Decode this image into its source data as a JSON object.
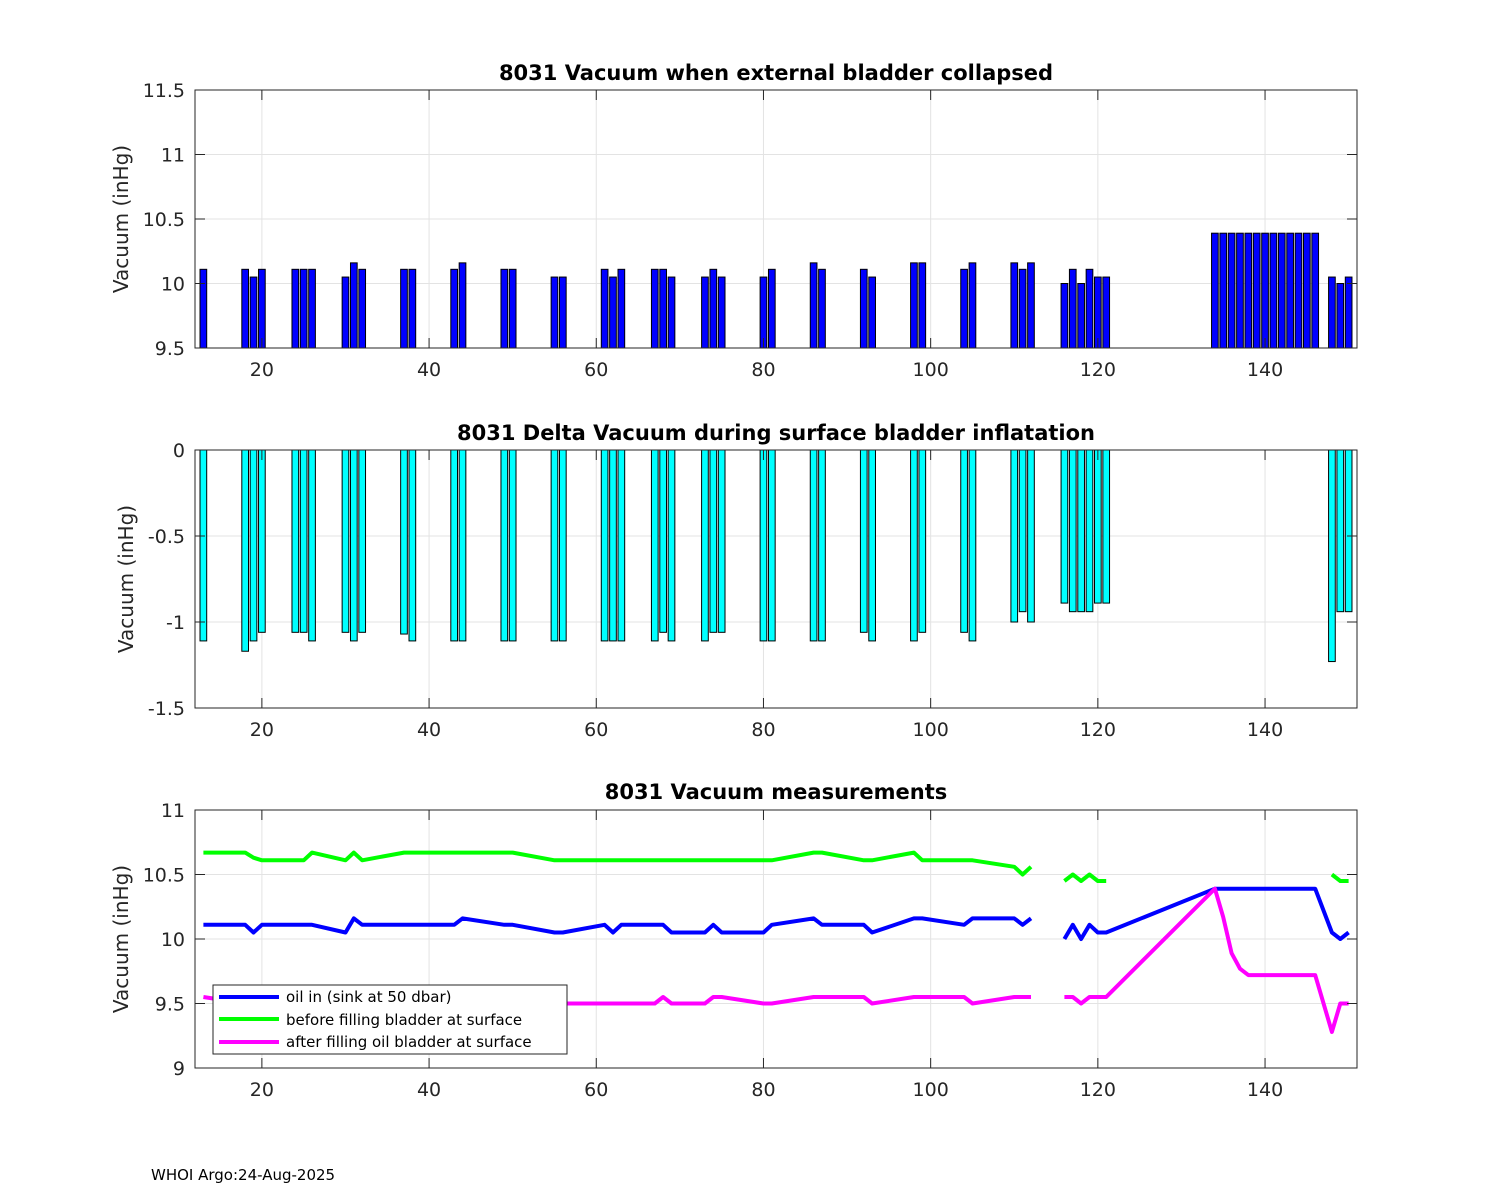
{
  "footer": "WHOI Argo:24-Aug-2025",
  "chart_data": [
    {
      "type": "bar",
      "title": "8031 Vacuum when external bladder collapsed",
      "ylabel": "Vacuum (inHg)",
      "xlim": [
        12,
        151
      ],
      "ylim": [
        9.5,
        11.5
      ],
      "yticks": [
        "9.5",
        "10",
        "10.5",
        "11",
        "11.5"
      ],
      "xticks": [
        "20",
        "40",
        "60",
        "80",
        "100",
        "120",
        "140"
      ],
      "color": "#0000ff",
      "baseline": 9.5,
      "x": [
        13,
        18,
        19,
        20,
        24,
        25,
        26,
        30,
        31,
        32,
        37,
        38,
        43,
        44,
        49,
        50,
        55,
        56,
        61,
        62,
        63,
        67,
        68,
        69,
        73,
        74,
        75,
        80,
        81,
        86,
        87,
        92,
        93,
        98,
        99,
        104,
        105,
        110,
        111,
        112,
        116,
        117,
        118,
        119,
        120,
        121,
        134,
        135,
        136,
        137,
        138,
        139,
        140,
        141,
        142,
        143,
        144,
        145,
        146,
        148,
        149,
        150
      ],
      "values": [
        10.11,
        10.11,
        10.05,
        10.11,
        10.11,
        10.11,
        10.11,
        10.05,
        10.16,
        10.11,
        10.11,
        10.11,
        10.11,
        10.16,
        10.11,
        10.11,
        10.05,
        10.05,
        10.11,
        10.05,
        10.11,
        10.11,
        10.11,
        10.05,
        10.05,
        10.11,
        10.05,
        10.05,
        10.11,
        10.16,
        10.11,
        10.11,
        10.05,
        10.16,
        10.16,
        10.11,
        10.16,
        10.16,
        10.11,
        10.16,
        10.0,
        10.11,
        10.0,
        10.11,
        10.05,
        10.05,
        10.39,
        10.39,
        10.39,
        10.39,
        10.39,
        10.39,
        10.39,
        10.39,
        10.39,
        10.39,
        10.39,
        10.39,
        10.39,
        10.05,
        10.0,
        10.05
      ]
    },
    {
      "type": "bar",
      "title": "8031 Delta Vacuum during surface bladder inflatation",
      "ylabel": "Vacuum (inHg)",
      "xlim": [
        12,
        151
      ],
      "ylim": [
        -1.5,
        0
      ],
      "yticks": [
        "-1.5",
        "-1",
        "-0.5",
        "0"
      ],
      "xticks": [
        "20",
        "40",
        "60",
        "80",
        "100",
        "120",
        "140"
      ],
      "color": "#00ffff",
      "baseline": 0,
      "x": [
        13,
        18,
        19,
        20,
        24,
        25,
        26,
        30,
        31,
        32,
        37,
        38,
        43,
        44,
        49,
        50,
        55,
        56,
        61,
        62,
        63,
        67,
        68,
        69,
        73,
        74,
        75,
        80,
        81,
        86,
        87,
        92,
        93,
        98,
        99,
        104,
        105,
        110,
        111,
        112,
        116,
        117,
        118,
        119,
        120,
        121,
        148,
        149,
        150
      ],
      "values": [
        -1.11,
        -1.17,
        -1.11,
        -1.06,
        -1.06,
        -1.06,
        -1.11,
        -1.06,
        -1.11,
        -1.06,
        -1.07,
        -1.11,
        -1.11,
        -1.11,
        -1.11,
        -1.11,
        -1.11,
        -1.11,
        -1.11,
        -1.11,
        -1.11,
        -1.11,
        -1.06,
        -1.11,
        -1.11,
        -1.06,
        -1.06,
        -1.11,
        -1.11,
        -1.11,
        -1.11,
        -1.06,
        -1.11,
        -1.11,
        -1.06,
        -1.06,
        -1.11,
        -1.0,
        -0.94,
        -1.0,
        -0.89,
        -0.94,
        -0.94,
        -0.94,
        -0.89,
        -0.89,
        -1.23,
        -0.94,
        -0.94
      ]
    },
    {
      "type": "line",
      "title": "8031 Vacuum measurements",
      "ylabel": "Vacuum (inHg)",
      "xlim": [
        12,
        151
      ],
      "ylim": [
        9,
        11
      ],
      "yticks": [
        "9",
        "9.5",
        "10",
        "10.5",
        "11"
      ],
      "xticks": [
        "20",
        "40",
        "60",
        "80",
        "100",
        "120",
        "140"
      ],
      "legend_position": "bottom-left",
      "series": [
        {
          "name": "oil in (sink at 50 dbar)",
          "color": "#0000ff",
          "x": [
            13,
            18,
            19,
            20,
            24,
            25,
            26,
            30,
            31,
            32,
            37,
            38,
            43,
            44,
            49,
            50,
            55,
            56,
            61,
            62,
            63,
            67,
            68,
            69,
            73,
            74,
            75,
            80,
            81,
            86,
            87,
            92,
            93,
            98,
            99,
            104,
            105,
            110,
            111,
            112,
            null,
            116,
            117,
            118,
            119,
            120,
            121,
            134,
            135,
            136,
            137,
            138,
            139,
            140,
            141,
            142,
            143,
            144,
            145,
            146,
            148,
            149,
            150
          ],
          "values": [
            10.11,
            10.11,
            10.05,
            10.11,
            10.11,
            10.11,
            10.11,
            10.05,
            10.16,
            10.11,
            10.11,
            10.11,
            10.11,
            10.16,
            10.11,
            10.11,
            10.05,
            10.05,
            10.11,
            10.05,
            10.11,
            10.11,
            10.11,
            10.05,
            10.05,
            10.11,
            10.05,
            10.05,
            10.11,
            10.16,
            10.11,
            10.11,
            10.05,
            10.16,
            10.16,
            10.11,
            10.16,
            10.16,
            10.11,
            10.16,
            null,
            10.0,
            10.11,
            10.0,
            10.11,
            10.05,
            10.05,
            10.39,
            10.39,
            10.39,
            10.39,
            10.39,
            10.39,
            10.39,
            10.39,
            10.39,
            10.39,
            10.39,
            10.39,
            10.39,
            10.05,
            10.0,
            10.05
          ]
        },
        {
          "name": "before filling bladder at surface",
          "color": "#00ff00",
          "x": [
            13,
            18,
            19,
            20,
            24,
            25,
            26,
            30,
            31,
            32,
            37,
            38,
            43,
            44,
            49,
            50,
            55,
            56,
            61,
            62,
            63,
            67,
            68,
            69,
            73,
            74,
            75,
            80,
            81,
            86,
            87,
            92,
            93,
            98,
            99,
            104,
            105,
            110,
            111,
            112,
            null,
            116,
            117,
            118,
            119,
            120,
            121,
            null,
            148,
            149,
            150
          ],
          "values": [
            10.67,
            10.67,
            10.63,
            10.61,
            10.61,
            10.61,
            10.67,
            10.61,
            10.67,
            10.61,
            10.67,
            10.67,
            10.67,
            10.67,
            10.67,
            10.67,
            10.61,
            10.61,
            10.61,
            10.61,
            10.61,
            10.61,
            10.61,
            10.61,
            10.61,
            10.61,
            10.61,
            10.61,
            10.61,
            10.67,
            10.67,
            10.61,
            10.61,
            10.67,
            10.61,
            10.61,
            10.61,
            10.56,
            10.5,
            10.56,
            null,
            10.45,
            10.5,
            10.45,
            10.5,
            10.45,
            10.45,
            null,
            10.5,
            10.45,
            10.45
          ]
        },
        {
          "name": "after filling oil bladder at surface",
          "color": "#ff00ff",
          "x": [
            13,
            18,
            19,
            20,
            24,
            25,
            26,
            30,
            31,
            32,
            37,
            38,
            43,
            44,
            49,
            50,
            55,
            56,
            61,
            62,
            63,
            67,
            68,
            69,
            73,
            74,
            75,
            80,
            81,
            86,
            87,
            92,
            93,
            98,
            99,
            104,
            105,
            110,
            111,
            112,
            null,
            116,
            117,
            118,
            119,
            120,
            121,
            134,
            135,
            136,
            137,
            138,
            139,
            140,
            141,
            142,
            143,
            144,
            145,
            146,
            148,
            149,
            150
          ],
          "values": [
            9.55,
            9.5,
            9.5,
            9.5,
            9.5,
            9.5,
            9.5,
            9.5,
            9.5,
            9.5,
            9.5,
            9.5,
            9.5,
            9.5,
            9.5,
            9.5,
            9.5,
            9.5,
            9.5,
            9.5,
            9.5,
            9.5,
            9.55,
            9.5,
            9.5,
            9.55,
            9.55,
            9.5,
            9.5,
            9.55,
            9.55,
            9.55,
            9.5,
            9.55,
            9.55,
            9.55,
            9.5,
            9.55,
            9.55,
            9.55,
            null,
            9.55,
            9.55,
            9.5,
            9.55,
            9.55,
            9.55,
            10.39,
            10.17,
            9.89,
            9.77,
            9.72,
            9.72,
            9.72,
            9.72,
            9.72,
            9.72,
            9.72,
            9.72,
            9.72,
            9.28,
            9.5,
            9.5
          ]
        }
      ]
    }
  ]
}
